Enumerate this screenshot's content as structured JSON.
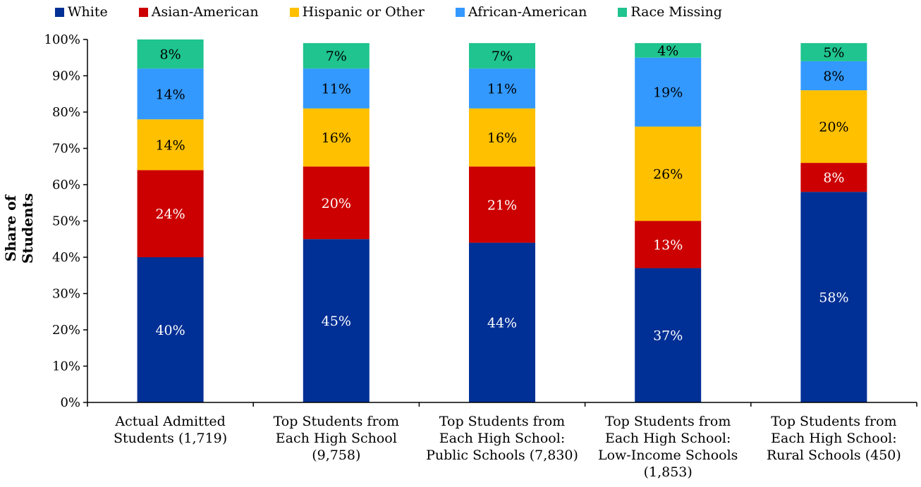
{
  "chart_data": {
    "type": "bar",
    "stacked": true,
    "ylabel": "Share of Students",
    "ylim": [
      0,
      100
    ],
    "yticks": [
      "0%",
      "10%",
      "20%",
      "30%",
      "40%",
      "50%",
      "60%",
      "70%",
      "80%",
      "90%",
      "100%"
    ],
    "categories": [
      [
        "Actual Admitted",
        "Students (1,719)"
      ],
      [
        "Top Students from",
        "Each High School",
        "(9,758)"
      ],
      [
        "Top Students from",
        "Each High School:",
        "Public Schools (7,830)"
      ],
      [
        "Top Students from",
        "Each High School:",
        "Low-Income Schools",
        "(1,853)"
      ],
      [
        "Top Students from",
        "Each High School:",
        "Rural Schools (450)"
      ]
    ],
    "series": [
      {
        "name": "White",
        "color": "#002f95",
        "values": [
          40,
          45,
          44,
          37,
          58
        ],
        "labels": [
          "40%",
          "45%",
          "44%",
          "37%",
          "58%"
        ],
        "label_color": "#ffffff"
      },
      {
        "name": "Asian-American",
        "color": "#cc0000",
        "values": [
          24,
          20,
          21,
          13,
          8
        ],
        "labels": [
          "24%",
          "20%",
          "21%",
          "13%",
          "8%"
        ],
        "label_color": "#ffffff"
      },
      {
        "name": "Hispanic or Other",
        "color": "#ffc000",
        "values": [
          14,
          16,
          16,
          26,
          20
        ],
        "labels": [
          "14%",
          "16%",
          "16%",
          "26%",
          "20%"
        ],
        "label_color": "#000000"
      },
      {
        "name": "African-American",
        "color": "#3399ff",
        "values": [
          14,
          11,
          11,
          19,
          8
        ],
        "labels": [
          "14%",
          "11%",
          "11%",
          "19%",
          "8%"
        ],
        "label_color": "#000000"
      },
      {
        "name": "Race Missing",
        "color": "#1fc48e",
        "values": [
          8,
          7,
          7,
          4,
          5
        ],
        "labels": [
          "8%",
          "7%",
          "7%",
          "4%",
          "5%"
        ],
        "label_color": "#000000"
      }
    ],
    "legend_position": "top",
    "grid": false
  }
}
